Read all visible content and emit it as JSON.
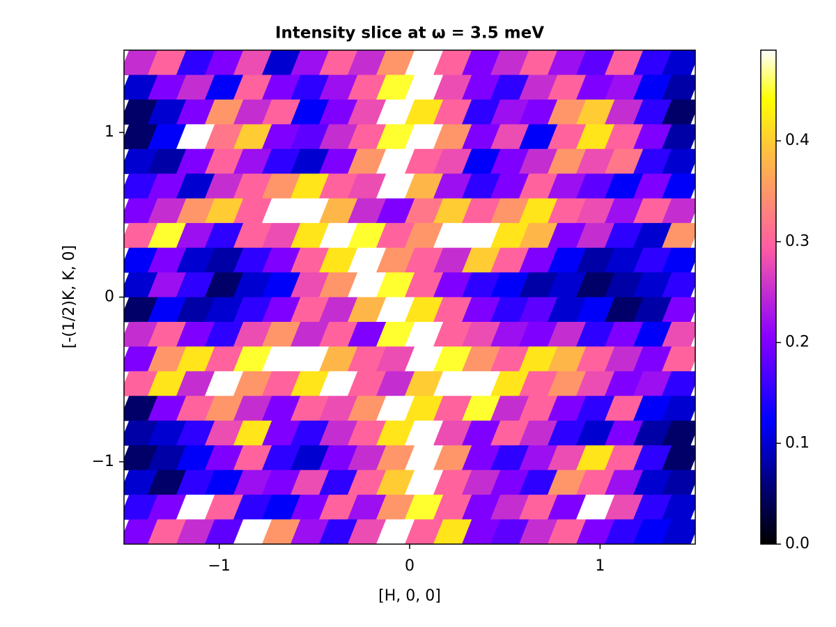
{
  "chart_data": {
    "type": "heatmap",
    "title": "Intensity slice at ω = 3.5 meV",
    "x_label": "[H, 0, 0]",
    "y_label": "[-(1/2)K, K, 0]",
    "x": [
      -1.425,
      -1.275,
      -1.125,
      -0.975,
      -0.825,
      -0.675,
      -0.525,
      -0.375,
      -0.225,
      -0.075,
      0.075,
      0.225,
      0.375,
      0.525,
      0.675,
      0.825,
      0.975,
      1.125,
      1.275,
      1.425
    ],
    "y": [
      1.425,
      1.275,
      1.125,
      0.975,
      0.825,
      0.675,
      0.525,
      0.375,
      0.225,
      0.075,
      -0.075,
      -0.225,
      -0.375,
      -0.525,
      -0.675,
      -0.825,
      -0.975,
      -1.125,
      -1.275,
      -1.425
    ],
    "values": [
      [
        0.25,
        0.3,
        0.15,
        0.2,
        0.28,
        0.1,
        0.22,
        0.3,
        0.25,
        0.35,
        0.5,
        0.3,
        0.2,
        0.25,
        0.3,
        0.22,
        0.18,
        0.3,
        0.15,
        0.1
      ],
      [
        0.1,
        0.2,
        0.25,
        0.12,
        0.3,
        0.2,
        0.15,
        0.22,
        0.3,
        0.45,
        0.5,
        0.28,
        0.2,
        0.15,
        0.25,
        0.3,
        0.2,
        0.22,
        0.12,
        0.08
      ],
      [
        0.05,
        0.1,
        0.2,
        0.35,
        0.25,
        0.3,
        0.12,
        0.2,
        0.28,
        0.5,
        0.42,
        0.3,
        0.15,
        0.22,
        0.2,
        0.35,
        0.4,
        0.25,
        0.15,
        0.05
      ],
      [
        0.05,
        0.12,
        0.5,
        0.32,
        0.4,
        0.2,
        0.18,
        0.25,
        0.3,
        0.45,
        0.5,
        0.35,
        0.2,
        0.28,
        0.12,
        0.3,
        0.42,
        0.3,
        0.2,
        0.08
      ],
      [
        0.1,
        0.08,
        0.2,
        0.3,
        0.22,
        0.15,
        0.1,
        0.2,
        0.35,
        0.5,
        0.3,
        0.28,
        0.12,
        0.2,
        0.25,
        0.35,
        0.28,
        0.32,
        0.15,
        0.1
      ],
      [
        0.15,
        0.2,
        0.1,
        0.25,
        0.3,
        0.35,
        0.42,
        0.3,
        0.28,
        0.5,
        0.38,
        0.22,
        0.15,
        0.2,
        0.3,
        0.22,
        0.18,
        0.12,
        0.2,
        0.12
      ],
      [
        0.2,
        0.25,
        0.35,
        0.4,
        0.3,
        0.5,
        0.5,
        0.38,
        0.25,
        0.2,
        0.32,
        0.4,
        0.3,
        0.35,
        0.42,
        0.3,
        0.28,
        0.22,
        0.3,
        0.25
      ],
      [
        0.3,
        0.45,
        0.22,
        0.15,
        0.3,
        0.28,
        0.42,
        0.5,
        0.45,
        0.3,
        0.35,
        0.5,
        0.5,
        0.42,
        0.38,
        0.2,
        0.25,
        0.15,
        0.1,
        0.35
      ],
      [
        0.12,
        0.2,
        0.1,
        0.08,
        0.15,
        0.2,
        0.3,
        0.42,
        0.5,
        0.35,
        0.3,
        0.25,
        0.4,
        0.3,
        0.2,
        0.12,
        0.08,
        0.1,
        0.15,
        0.12
      ],
      [
        0.1,
        0.22,
        0.15,
        0.05,
        0.1,
        0.12,
        0.28,
        0.35,
        0.5,
        0.45,
        0.3,
        0.2,
        0.15,
        0.12,
        0.08,
        0.1,
        0.05,
        0.08,
        0.1,
        0.15
      ],
      [
        0.05,
        0.12,
        0.08,
        0.1,
        0.15,
        0.2,
        0.3,
        0.25,
        0.38,
        0.5,
        0.42,
        0.3,
        0.2,
        0.15,
        0.18,
        0.1,
        0.12,
        0.05,
        0.08,
        0.2
      ],
      [
        0.25,
        0.3,
        0.2,
        0.15,
        0.28,
        0.35,
        0.25,
        0.3,
        0.2,
        0.45,
        0.5,
        0.3,
        0.28,
        0.22,
        0.2,
        0.25,
        0.15,
        0.2,
        0.12,
        0.28
      ],
      [
        0.2,
        0.35,
        0.42,
        0.3,
        0.45,
        0.5,
        0.5,
        0.38,
        0.3,
        0.28,
        0.5,
        0.45,
        0.35,
        0.3,
        0.42,
        0.38,
        0.3,
        0.25,
        0.2,
        0.3
      ],
      [
        0.3,
        0.42,
        0.25,
        0.5,
        0.35,
        0.3,
        0.42,
        0.5,
        0.3,
        0.25,
        0.4,
        0.5,
        0.5,
        0.42,
        0.3,
        0.35,
        0.28,
        0.2,
        0.22,
        0.15
      ],
      [
        0.05,
        0.2,
        0.3,
        0.35,
        0.25,
        0.2,
        0.3,
        0.28,
        0.35,
        0.5,
        0.42,
        0.3,
        0.45,
        0.25,
        0.3,
        0.2,
        0.15,
        0.3,
        0.12,
        0.1
      ],
      [
        0.08,
        0.1,
        0.15,
        0.28,
        0.42,
        0.2,
        0.15,
        0.25,
        0.3,
        0.42,
        0.5,
        0.28,
        0.2,
        0.3,
        0.25,
        0.15,
        0.1,
        0.2,
        0.08,
        0.05
      ],
      [
        0.05,
        0.08,
        0.12,
        0.2,
        0.3,
        0.15,
        0.1,
        0.2,
        0.25,
        0.35,
        0.5,
        0.35,
        0.2,
        0.15,
        0.22,
        0.28,
        0.42,
        0.3,
        0.15,
        0.05
      ],
      [
        0.1,
        0.05,
        0.15,
        0.12,
        0.22,
        0.2,
        0.28,
        0.15,
        0.3,
        0.4,
        0.5,
        0.3,
        0.25,
        0.2,
        0.15,
        0.35,
        0.3,
        0.22,
        0.1,
        0.08
      ],
      [
        0.15,
        0.2,
        0.5,
        0.3,
        0.15,
        0.12,
        0.2,
        0.3,
        0.22,
        0.35,
        0.45,
        0.3,
        0.2,
        0.25,
        0.3,
        0.2,
        0.5,
        0.28,
        0.15,
        0.1
      ],
      [
        0.2,
        0.3,
        0.25,
        0.18,
        0.5,
        0.35,
        0.22,
        0.15,
        0.28,
        0.5,
        0.3,
        0.42,
        0.2,
        0.18,
        0.25,
        0.3,
        0.2,
        0.15,
        0.12,
        0.1
      ]
    ],
    "xlim": [
      -1.5,
      1.5
    ],
    "ylim": [
      -1.5,
      1.5
    ],
    "xticks": [
      {
        "value": -1,
        "label": "−1"
      },
      0,
      1
    ],
    "yticks": [
      {
        "value": -1,
        "label": "−1"
      },
      0,
      1
    ],
    "clim": [
      0,
      0.49
    ],
    "cticks": [
      {
        "value": 0,
        "label": "0.0"
      },
      0.1,
      0.2,
      0.3,
      0.4
    ],
    "colormap": [
      "#000000",
      "#0000ff",
      "#8800ff",
      "#ff5ca3",
      "#ffc23d",
      "#ffff00",
      "#ffffff"
    ],
    "colormap_positions": [
      0,
      0.25,
      0.42,
      0.6,
      0.8,
      0.9,
      1
    ]
  }
}
